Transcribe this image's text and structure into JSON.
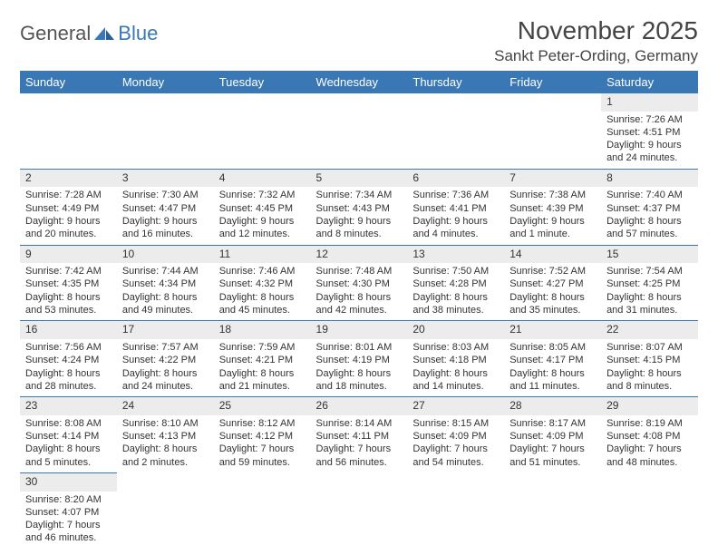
{
  "logo": {
    "part1": "General",
    "part2": "Blue"
  },
  "title": "November 2025",
  "location": "Sankt Peter-Ording, Germany",
  "colors": {
    "header_bg": "#3a78b5",
    "daynum_bg": "#ececec",
    "rule": "#3a78b5"
  },
  "weekdays": [
    "Sunday",
    "Monday",
    "Tuesday",
    "Wednesday",
    "Thursday",
    "Friday",
    "Saturday"
  ],
  "weeks": [
    [
      null,
      null,
      null,
      null,
      null,
      null,
      {
        "n": "1",
        "sr": "Sunrise: 7:26 AM",
        "ss": "Sunset: 4:51 PM",
        "d1": "Daylight: 9 hours",
        "d2": "and 24 minutes."
      }
    ],
    [
      {
        "n": "2",
        "sr": "Sunrise: 7:28 AM",
        "ss": "Sunset: 4:49 PM",
        "d1": "Daylight: 9 hours",
        "d2": "and 20 minutes."
      },
      {
        "n": "3",
        "sr": "Sunrise: 7:30 AM",
        "ss": "Sunset: 4:47 PM",
        "d1": "Daylight: 9 hours",
        "d2": "and 16 minutes."
      },
      {
        "n": "4",
        "sr": "Sunrise: 7:32 AM",
        "ss": "Sunset: 4:45 PM",
        "d1": "Daylight: 9 hours",
        "d2": "and 12 minutes."
      },
      {
        "n": "5",
        "sr": "Sunrise: 7:34 AM",
        "ss": "Sunset: 4:43 PM",
        "d1": "Daylight: 9 hours",
        "d2": "and 8 minutes."
      },
      {
        "n": "6",
        "sr": "Sunrise: 7:36 AM",
        "ss": "Sunset: 4:41 PM",
        "d1": "Daylight: 9 hours",
        "d2": "and 4 minutes."
      },
      {
        "n": "7",
        "sr": "Sunrise: 7:38 AM",
        "ss": "Sunset: 4:39 PM",
        "d1": "Daylight: 9 hours",
        "d2": "and 1 minute."
      },
      {
        "n": "8",
        "sr": "Sunrise: 7:40 AM",
        "ss": "Sunset: 4:37 PM",
        "d1": "Daylight: 8 hours",
        "d2": "and 57 minutes."
      }
    ],
    [
      {
        "n": "9",
        "sr": "Sunrise: 7:42 AM",
        "ss": "Sunset: 4:35 PM",
        "d1": "Daylight: 8 hours",
        "d2": "and 53 minutes."
      },
      {
        "n": "10",
        "sr": "Sunrise: 7:44 AM",
        "ss": "Sunset: 4:34 PM",
        "d1": "Daylight: 8 hours",
        "d2": "and 49 minutes."
      },
      {
        "n": "11",
        "sr": "Sunrise: 7:46 AM",
        "ss": "Sunset: 4:32 PM",
        "d1": "Daylight: 8 hours",
        "d2": "and 45 minutes."
      },
      {
        "n": "12",
        "sr": "Sunrise: 7:48 AM",
        "ss": "Sunset: 4:30 PM",
        "d1": "Daylight: 8 hours",
        "d2": "and 42 minutes."
      },
      {
        "n": "13",
        "sr": "Sunrise: 7:50 AM",
        "ss": "Sunset: 4:28 PM",
        "d1": "Daylight: 8 hours",
        "d2": "and 38 minutes."
      },
      {
        "n": "14",
        "sr": "Sunrise: 7:52 AM",
        "ss": "Sunset: 4:27 PM",
        "d1": "Daylight: 8 hours",
        "d2": "and 35 minutes."
      },
      {
        "n": "15",
        "sr": "Sunrise: 7:54 AM",
        "ss": "Sunset: 4:25 PM",
        "d1": "Daylight: 8 hours",
        "d2": "and 31 minutes."
      }
    ],
    [
      {
        "n": "16",
        "sr": "Sunrise: 7:56 AM",
        "ss": "Sunset: 4:24 PM",
        "d1": "Daylight: 8 hours",
        "d2": "and 28 minutes."
      },
      {
        "n": "17",
        "sr": "Sunrise: 7:57 AM",
        "ss": "Sunset: 4:22 PM",
        "d1": "Daylight: 8 hours",
        "d2": "and 24 minutes."
      },
      {
        "n": "18",
        "sr": "Sunrise: 7:59 AM",
        "ss": "Sunset: 4:21 PM",
        "d1": "Daylight: 8 hours",
        "d2": "and 21 minutes."
      },
      {
        "n": "19",
        "sr": "Sunrise: 8:01 AM",
        "ss": "Sunset: 4:19 PM",
        "d1": "Daylight: 8 hours",
        "d2": "and 18 minutes."
      },
      {
        "n": "20",
        "sr": "Sunrise: 8:03 AM",
        "ss": "Sunset: 4:18 PM",
        "d1": "Daylight: 8 hours",
        "d2": "and 14 minutes."
      },
      {
        "n": "21",
        "sr": "Sunrise: 8:05 AM",
        "ss": "Sunset: 4:17 PM",
        "d1": "Daylight: 8 hours",
        "d2": "and 11 minutes."
      },
      {
        "n": "22",
        "sr": "Sunrise: 8:07 AM",
        "ss": "Sunset: 4:15 PM",
        "d1": "Daylight: 8 hours",
        "d2": "and 8 minutes."
      }
    ],
    [
      {
        "n": "23",
        "sr": "Sunrise: 8:08 AM",
        "ss": "Sunset: 4:14 PM",
        "d1": "Daylight: 8 hours",
        "d2": "and 5 minutes."
      },
      {
        "n": "24",
        "sr": "Sunrise: 8:10 AM",
        "ss": "Sunset: 4:13 PM",
        "d1": "Daylight: 8 hours",
        "d2": "and 2 minutes."
      },
      {
        "n": "25",
        "sr": "Sunrise: 8:12 AM",
        "ss": "Sunset: 4:12 PM",
        "d1": "Daylight: 7 hours",
        "d2": "and 59 minutes."
      },
      {
        "n": "26",
        "sr": "Sunrise: 8:14 AM",
        "ss": "Sunset: 4:11 PM",
        "d1": "Daylight: 7 hours",
        "d2": "and 56 minutes."
      },
      {
        "n": "27",
        "sr": "Sunrise: 8:15 AM",
        "ss": "Sunset: 4:09 PM",
        "d1": "Daylight: 7 hours",
        "d2": "and 54 minutes."
      },
      {
        "n": "28",
        "sr": "Sunrise: 8:17 AM",
        "ss": "Sunset: 4:09 PM",
        "d1": "Daylight: 7 hours",
        "d2": "and 51 minutes."
      },
      {
        "n": "29",
        "sr": "Sunrise: 8:19 AM",
        "ss": "Sunset: 4:08 PM",
        "d1": "Daylight: 7 hours",
        "d2": "and 48 minutes."
      }
    ],
    [
      {
        "n": "30",
        "sr": "Sunrise: 8:20 AM",
        "ss": "Sunset: 4:07 PM",
        "d1": "Daylight: 7 hours",
        "d2": "and 46 minutes."
      },
      null,
      null,
      null,
      null,
      null,
      null
    ]
  ]
}
